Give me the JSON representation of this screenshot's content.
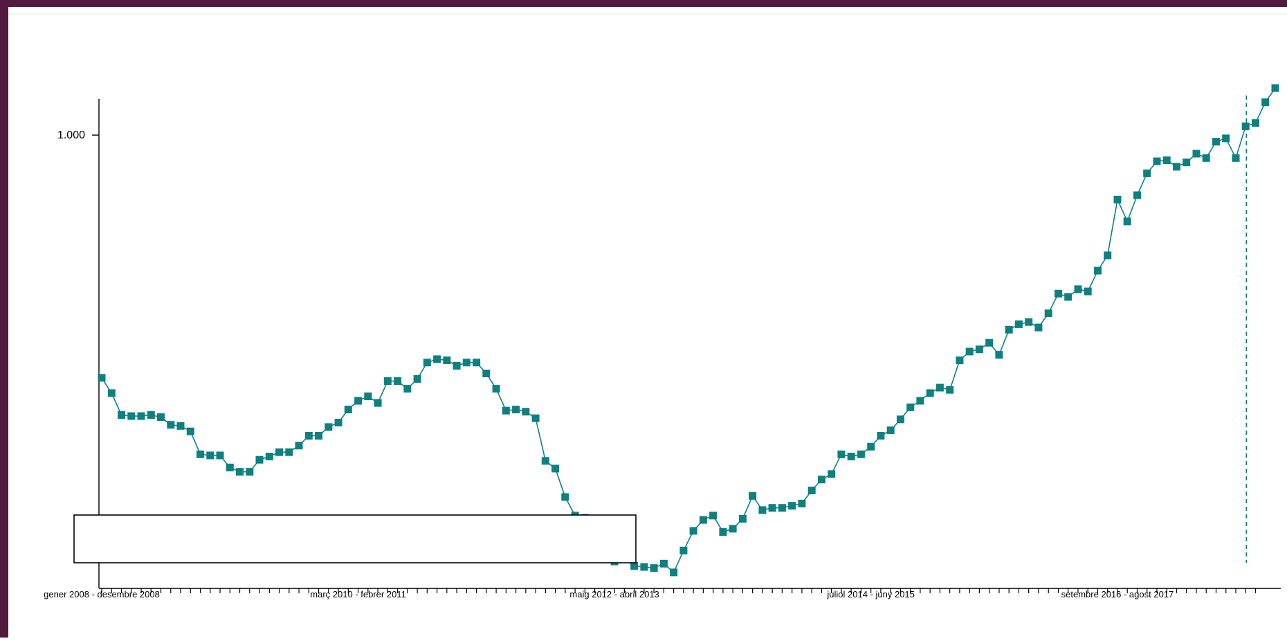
{
  "chart_data": {
    "type": "line",
    "title": "",
    "xlabel": "",
    "ylabel": "",
    "ytick_labels": [
      "1.000"
    ],
    "ytick_values": [
      1000
    ],
    "ylim": [
      585.4,
      1033
    ],
    "xtick_labels": [
      "gener 2008 - desembre 2008",
      "març 2010 - febrer 2011",
      "maig 2012 - abril 2013",
      "juliol 2014 - juny 2015",
      "setembre 2016 - agost 2017"
    ],
    "xtick_indices": [
      0,
      26,
      52,
      78,
      103
    ],
    "period_count": 117,
    "grid": false,
    "legend": "none",
    "marker": "square",
    "colors": {
      "series": "#0f8080",
      "axis": "#000000",
      "frame": "#521a3c",
      "reference_line": "#0f8080"
    },
    "reference_line": {
      "style": "dashed",
      "at_index": 116
    },
    "series": [
      {
        "values": [
          778,
          764,
          744,
          743,
          743,
          744,
          742,
          735,
          734,
          729,
          708,
          707,
          707,
          696,
          692,
          692,
          703,
          706,
          710,
          710,
          716,
          725,
          725,
          733,
          737,
          749,
          757,
          761,
          755,
          775,
          775,
          768,
          777,
          792,
          795,
          794,
          789,
          792,
          792,
          782,
          768,
          748,
          749,
          747,
          741,
          702,
          695,
          669,
          652,
          650,
          637,
          625,
          610,
          612,
          606,
          605,
          604,
          608,
          600,
          620,
          638,
          648,
          652,
          637,
          640,
          649,
          670,
          657,
          659,
          659,
          661,
          663,
          675,
          685,
          690,
          708,
          706,
          708,
          715,
          725,
          730,
          740,
          751,
          757,
          764,
          769,
          767,
          794,
          802,
          804,
          810,
          799,
          822,
          827,
          829,
          824,
          837,
          855,
          852,
          859,
          857,
          876,
          890,
          941,
          921,
          945,
          965,
          976,
          977,
          971,
          975,
          983,
          979,
          994,
          997,
          979,
          1008
        ]
      }
    ],
    "series_tail": [
      1011,
      1030,
      1043
    ]
  }
}
